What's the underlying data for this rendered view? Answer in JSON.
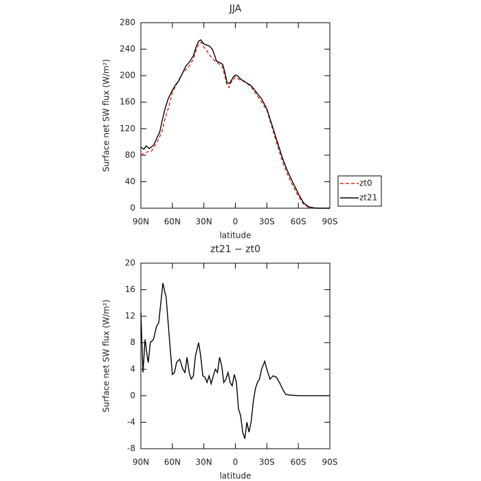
{
  "chart_data": [
    {
      "type": "line",
      "title": "JJA",
      "xlabel": "latitude",
      "ylabel": "Surface net SW flux (W/m²)",
      "xlim": [
        90,
        -90
      ],
      "xticks": [
        {
          "value": 90,
          "label": "90N"
        },
        {
          "value": 60,
          "label": "60N"
        },
        {
          "value": 30,
          "label": "30N"
        },
        0,
        {
          "value": -30,
          "label": "30S"
        },
        {
          "value": -60,
          "label": "60S"
        },
        {
          "value": -90,
          "label": "90S"
        }
      ],
      "ylim": [
        0,
        280
      ],
      "yticks": [
        0,
        40,
        80,
        120,
        160,
        200,
        240,
        280
      ],
      "legend": "outside-right",
      "series": [
        {
          "name": "zt0",
          "color": "#e8221c",
          "dash": "dashed",
          "x": [
            90,
            87,
            84,
            80,
            77,
            73,
            70,
            67,
            63,
            60,
            55,
            50,
            45,
            40,
            37,
            34,
            32,
            30,
            27,
            24,
            20,
            16,
            13,
            10,
            8,
            6,
            4,
            0,
            -5,
            -10,
            -15,
            -20,
            -25,
            -30,
            -35,
            -40,
            -45,
            -50,
            -55,
            -60,
            -65,
            -70,
            -75,
            -90
          ],
          "values": [
            80,
            83,
            85,
            86,
            93,
            105,
            115,
            135,
            155,
            175,
            190,
            205,
            212,
            225,
            240,
            250,
            250,
            243,
            237,
            230,
            223,
            218,
            215,
            200,
            185,
            182,
            190,
            198,
            193,
            190,
            183,
            172,
            160,
            148,
            122,
            95,
            70,
            50,
            33,
            18,
            6,
            1,
            0,
            0
          ]
        },
        {
          "name": "zt21",
          "color": "#000000",
          "dash": "solid",
          "x": [
            90,
            87,
            85,
            82,
            78,
            75,
            72,
            70,
            67,
            64,
            60,
            57,
            54,
            50,
            47,
            44,
            40,
            37,
            35,
            33,
            30,
            27,
            25,
            22,
            20,
            18,
            15,
            12,
            10,
            8,
            6,
            4,
            2,
            0,
            -2,
            -5,
            -10,
            -15,
            -20,
            -25,
            -30,
            -35,
            -40,
            -45,
            -50,
            -55,
            -60,
            -65,
            -70,
            -75,
            -80,
            -90
          ],
          "values": [
            92,
            89,
            94,
            90,
            95,
            105,
            115,
            130,
            150,
            165,
            178,
            186,
            192,
            205,
            215,
            220,
            230,
            245,
            252,
            254,
            248,
            246,
            245,
            240,
            232,
            222,
            220,
            217,
            205,
            190,
            188,
            192,
            198,
            201,
            200,
            195,
            190,
            185,
            175,
            165,
            150,
            125,
            100,
            75,
            55,
            38,
            22,
            8,
            2,
            0.5,
            0,
            0
          ]
        }
      ]
    },
    {
      "type": "line",
      "title": "zt21 − zt0",
      "xlabel": "latitude",
      "ylabel": "Surface net SW flux (W/m²)",
      "xlim": [
        90,
        -90
      ],
      "xticks": [
        {
          "value": 90,
          "label": "90N"
        },
        {
          "value": 60,
          "label": "60N"
        },
        {
          "value": 30,
          "label": "30N"
        },
        0,
        {
          "value": -30,
          "label": "30S"
        },
        {
          "value": -60,
          "label": "60S"
        },
        {
          "value": -90,
          "label": "90S"
        }
      ],
      "ylim": [
        -8,
        20
      ],
      "yticks": [
        -8,
        -4,
        0,
        4,
        8,
        12,
        16,
        20
      ],
      "series": [
        {
          "color": "#000000",
          "dash": "solid",
          "x": [
            90,
            89,
            88,
            86,
            84,
            83,
            81,
            78,
            75,
            73,
            71,
            69,
            67,
            66,
            64,
            62,
            60,
            58,
            56,
            53,
            50,
            48,
            46,
            44,
            42,
            40,
            38,
            35,
            33,
            31,
            29,
            27,
            25,
            23,
            21,
            19,
            17,
            15,
            13,
            11,
            9,
            7,
            5,
            3,
            1,
            -1,
            -3,
            -5,
            -7,
            -9,
            -11,
            -13,
            -15,
            -17,
            -19,
            -21,
            -23,
            -25,
            -28,
            -30,
            -33,
            -36,
            -39,
            -42,
            -45,
            -48,
            -52,
            -60,
            -90
          ],
          "values": [
            12.5,
            8,
            3.5,
            8.5,
            6,
            5,
            8,
            8.5,
            10.5,
            11,
            14,
            17,
            15.5,
            15,
            11,
            7,
            3.2,
            3.5,
            5,
            5.5,
            4,
            3.5,
            5.8,
            3.5,
            2.5,
            3,
            6,
            8,
            6,
            3,
            2.8,
            2,
            3,
            1.8,
            3,
            4,
            3.5,
            5.8,
            4.5,
            2,
            2.5,
            3.5,
            2,
            1.5,
            3.2,
            2,
            -2,
            -3,
            -5.5,
            -6.5,
            -4,
            -5.5,
            -4,
            -1,
            1,
            2,
            2.5,
            4,
            5.2,
            4,
            2.5,
            3,
            2.8,
            2,
            1,
            0.2,
            0.1,
            0,
            0
          ]
        }
      ]
    }
  ]
}
